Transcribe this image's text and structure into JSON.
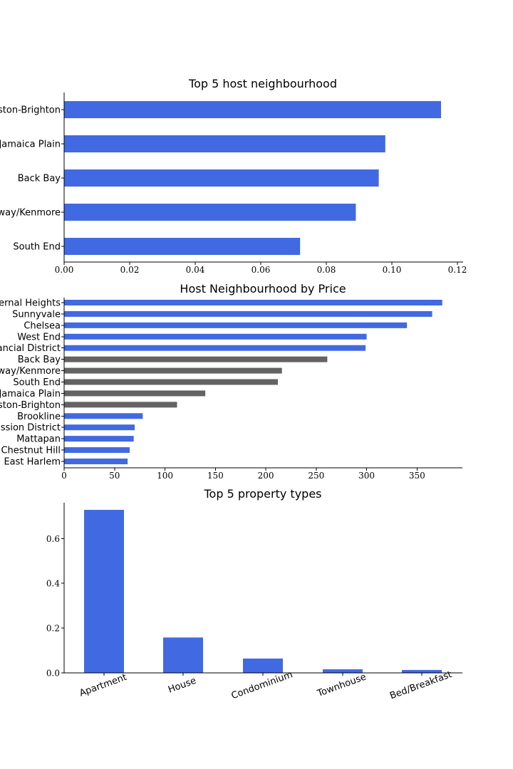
{
  "chart_data": [
    {
      "type": "bar",
      "orientation": "horizontal",
      "title": "Top 5 host neighbourhood",
      "categories": [
        "Allston-Brighton",
        "Jamaica Plain",
        "Back Bay",
        "Fenway/Kenmore",
        "South End"
      ],
      "values": [
        0.115,
        0.098,
        0.096,
        0.089,
        0.072
      ],
      "xlim": [
        0,
        0.12
      ],
      "xticks": [
        "0.00",
        "0.02",
        "0.04",
        "0.06",
        "0.08",
        "0.10",
        "0.12"
      ],
      "colors": {
        "bar": "#4169e1"
      }
    },
    {
      "type": "bar",
      "orientation": "horizontal",
      "title": "Host Neighbourhood by Price",
      "categories": [
        "Bernal Heights",
        "Sunnyvale",
        "Chelsea",
        "West End",
        "Financial District",
        "Back Bay",
        "Fenway/Kenmore",
        "South End",
        "Jamaica Plain",
        "Allston-Brighton",
        "Brookline",
        "Mission District",
        "Mattapan",
        "Chestnut Hill",
        "East Harlem"
      ],
      "values": [
        375,
        365,
        340,
        300,
        299,
        261,
        216,
        212,
        140,
        112,
        78,
        70,
        69,
        65,
        63
      ],
      "highlight": [
        false,
        false,
        false,
        false,
        false,
        true,
        true,
        true,
        true,
        true,
        false,
        false,
        false,
        false,
        false
      ],
      "xlim": [
        0,
        395
      ],
      "xticks": [
        "0",
        "50",
        "100",
        "150",
        "200",
        "250",
        "300",
        "350"
      ],
      "colors": {
        "bar": "#4169e1",
        "highlight": "#636363"
      }
    },
    {
      "type": "bar",
      "orientation": "vertical",
      "title": "Top 5 property types",
      "categories": [
        "Apartment",
        "House",
        "Condominium",
        "Townhouse",
        "Bed/Breakfast"
      ],
      "values": [
        0.728,
        0.158,
        0.064,
        0.016,
        0.013
      ],
      "ylim": [
        0,
        0.76
      ],
      "yticks": [
        "0.0",
        "0.2",
        "0.4",
        "0.6"
      ],
      "colors": {
        "bar": "#4169e1"
      }
    }
  ]
}
